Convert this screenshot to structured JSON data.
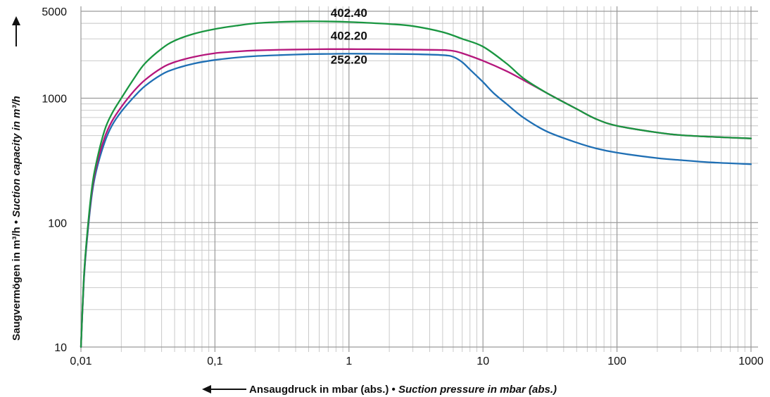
{
  "chart_data": {
    "type": "line",
    "x_scale": "log",
    "y_scale": "log",
    "xlim": [
      0.01,
      1000
    ],
    "ylim": [
      10,
      5000
    ],
    "grid": true,
    "x_ticks": [
      {
        "value": 0.01,
        "label": "0,01"
      },
      {
        "value": 0.1,
        "label": "0,1"
      },
      {
        "value": 1,
        "label": "1"
      },
      {
        "value": 10,
        "label": "10"
      },
      {
        "value": 100,
        "label": "100"
      },
      {
        "value": 1000,
        "label": "1000"
      }
    ],
    "y_ticks": [
      {
        "value": 10,
        "label": "10"
      },
      {
        "value": 100,
        "label": "100"
      },
      {
        "value": 1000,
        "label": "1000"
      },
      {
        "value": 5000,
        "label": "5000"
      }
    ],
    "xlabel_de": "Ansaugdruck in mbar (abs.) • ",
    "xlabel_en": "Suction pressure in mbar (abs.)",
    "ylabel_de": "Saugvermögen in m³/h • ",
    "ylabel_en": "Suction capacity in m³/h",
    "series": [
      {
        "name": "402.40",
        "color": "#1a9641",
        "x": [
          0.01,
          0.0105,
          0.011,
          0.012,
          0.013,
          0.015,
          0.017,
          0.02,
          0.025,
          0.03,
          0.04,
          0.05,
          0.07,
          0.1,
          0.15,
          0.2,
          0.3,
          0.5,
          0.7,
          1,
          2,
          3,
          5,
          7,
          10,
          15,
          20,
          30,
          50,
          70,
          100,
          200,
          300,
          500,
          1000
        ],
        "y": [
          10,
          35,
          70,
          180,
          300,
          550,
          750,
          1000,
          1450,
          1900,
          2500,
          2900,
          3300,
          3600,
          3850,
          4000,
          4100,
          4150,
          4140,
          4100,
          3950,
          3800,
          3400,
          3000,
          2600,
          1900,
          1450,
          1100,
          820,
          680,
          600,
          530,
          505,
          490,
          475
        ]
      },
      {
        "name": "402.20",
        "color": "#b5177c",
        "x": [
          0.01,
          0.0105,
          0.011,
          0.012,
          0.013,
          0.015,
          0.017,
          0.02,
          0.025,
          0.03,
          0.04,
          0.05,
          0.07,
          0.1,
          0.15,
          0.2,
          0.3,
          0.5,
          0.7,
          1,
          2,
          3,
          5,
          6,
          7,
          10,
          15,
          20,
          30,
          50,
          70,
          100,
          200,
          300,
          500,
          1000
        ],
        "y": [
          10,
          34,
          68,
          170,
          280,
          480,
          650,
          850,
          1150,
          1400,
          1750,
          1950,
          2150,
          2300,
          2380,
          2420,
          2450,
          2470,
          2480,
          2480,
          2470,
          2460,
          2440,
          2400,
          2300,
          2000,
          1650,
          1400,
          1100,
          820,
          680,
          600,
          530,
          505,
          490,
          475
        ]
      },
      {
        "name": "252.20",
        "color": "#1f6fb4",
        "x": [
          0.01,
          0.0105,
          0.011,
          0.012,
          0.013,
          0.015,
          0.017,
          0.02,
          0.025,
          0.03,
          0.04,
          0.05,
          0.07,
          0.1,
          0.15,
          0.2,
          0.3,
          0.5,
          0.7,
          1,
          2,
          3,
          5,
          6,
          7,
          8,
          10,
          12,
          15,
          20,
          30,
          50,
          70,
          100,
          200,
          300,
          500,
          1000
        ],
        "y": [
          10,
          33,
          65,
          160,
          260,
          440,
          600,
          780,
          1030,
          1250,
          1550,
          1720,
          1900,
          2030,
          2130,
          2180,
          2220,
          2260,
          2270,
          2280,
          2270,
          2260,
          2220,
          2150,
          1950,
          1700,
          1350,
          1100,
          900,
          700,
          540,
          440,
          395,
          365,
          330,
          318,
          305,
          295
        ]
      }
    ],
    "labels": [
      {
        "text": "402.40",
        "x": 1.0,
        "y": 4500
      },
      {
        "text": "402.20",
        "x": 1.0,
        "y": 2950
      },
      {
        "text": "252.20",
        "x": 1.0,
        "y": 1900
      }
    ]
  }
}
